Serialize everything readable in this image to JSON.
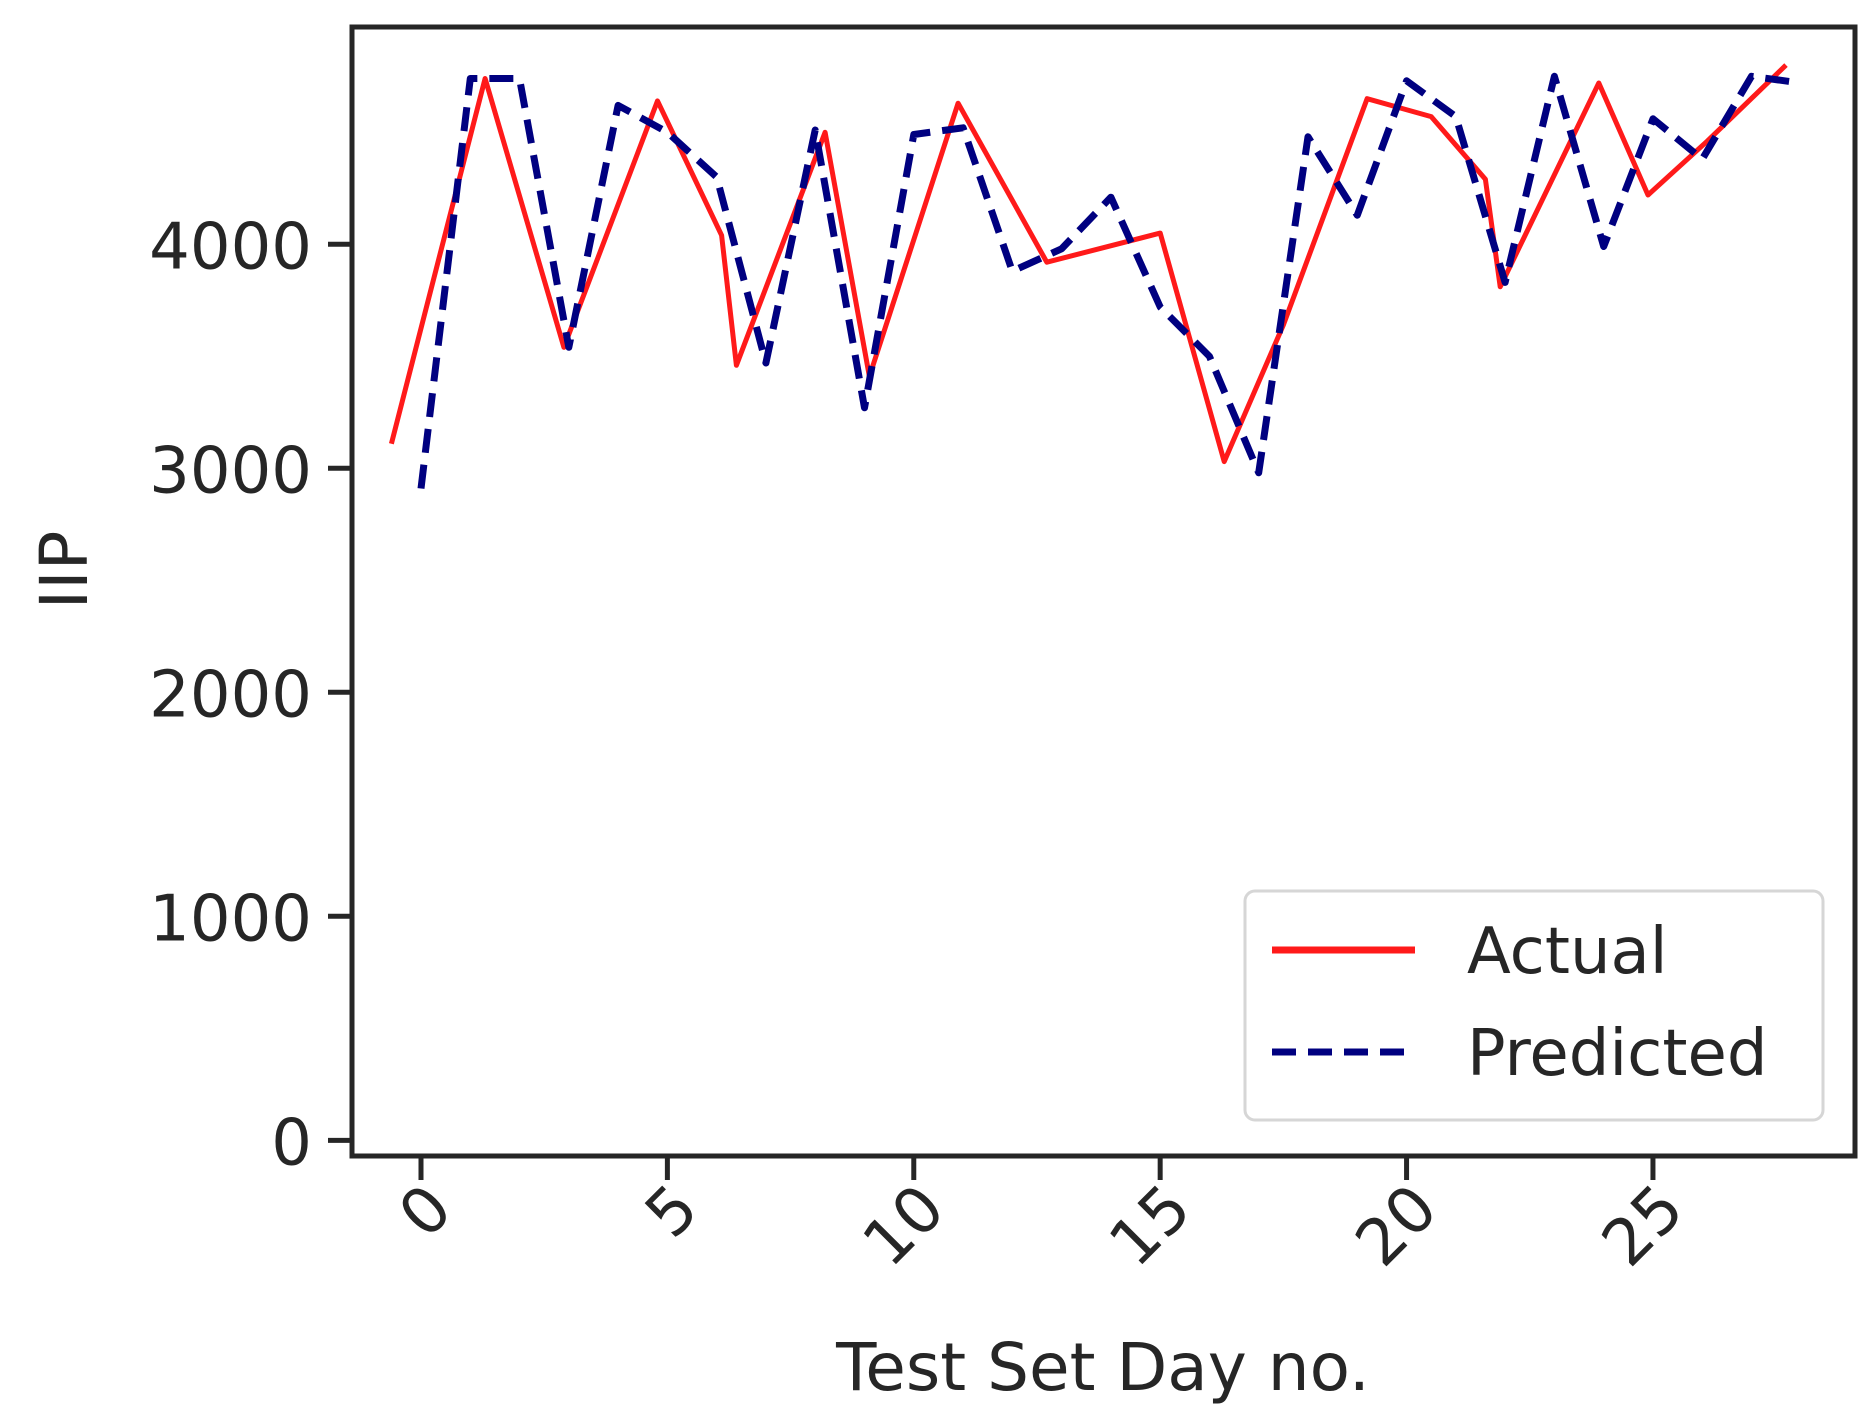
{
  "chart_data": {
    "type": "line",
    "xlabel": "Test Set Day no.",
    "ylabel": "IIP",
    "xlim": [
      -1.4,
      29.1
    ],
    "ylim": [
      -70,
      4970
    ],
    "xticks": [
      0,
      5,
      10,
      15,
      20,
      25
    ],
    "yticks": [
      0,
      1000,
      2000,
      3000,
      4000
    ],
    "xtick_rotation": 45,
    "grid": false,
    "legend_position": "lower-right",
    "colors": {
      "Actual": "#ff1a1a",
      "Predicted": "#000080"
    },
    "series": [
      {
        "name": "Actual",
        "style": "solid",
        "x": [
          -0.6,
          1.3,
          2.9,
          4.8,
          6.1,
          6.4,
          8.2,
          9.1,
          10.9,
          12.7,
          15.0,
          16.3,
          17.5,
          19.2,
          20.5,
          21.6,
          21.9,
          23.9,
          24.9,
          26.1,
          27.7
        ],
        "y": [
          3110,
          4740,
          3540,
          4640,
          4040,
          3460,
          4500,
          3410,
          4630,
          3920,
          4050,
          3030,
          3640,
          4650,
          4570,
          4290,
          3810,
          4720,
          4220,
          4460,
          4800
        ]
      },
      {
        "name": "Predicted",
        "style": "dashed",
        "x": [
          0,
          1,
          2,
          3,
          4,
          5,
          6,
          7,
          8,
          9,
          10,
          11,
          12,
          13,
          14,
          15,
          16,
          17,
          18,
          19,
          20,
          21,
          22,
          23,
          24,
          25,
          26,
          27,
          28
        ],
        "y": [
          2910,
          4740,
          4740,
          3540,
          4620,
          4500,
          4300,
          3470,
          4510,
          3270,
          4490,
          4520,
          3880,
          3980,
          4210,
          3720,
          3500,
          2980,
          4480,
          4130,
          4730,
          4570,
          3830,
          4750,
          3990,
          4560,
          4380,
          4750,
          4720
        ]
      }
    ]
  }
}
